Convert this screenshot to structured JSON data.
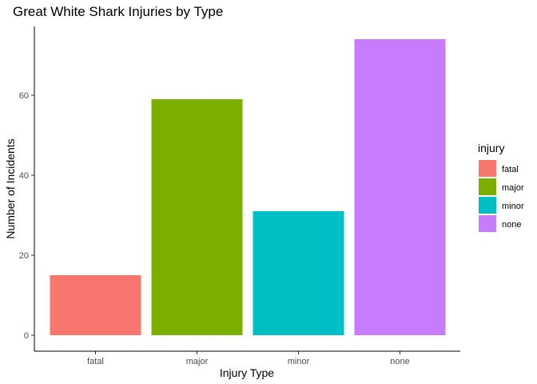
{
  "chart_data": {
    "type": "bar",
    "title": "Great White Shark Injuries by Type",
    "xlabel": "Injury Type",
    "ylabel": "Number of Incidents",
    "categories": [
      "fatal",
      "major",
      "minor",
      "none"
    ],
    "values": [
      15,
      59,
      31,
      74
    ],
    "ylim": [
      0,
      77.7
    ],
    "yticks": [
      0,
      20,
      40,
      60
    ],
    "grid": false,
    "legend": {
      "title": "injury",
      "position": "right",
      "entries": [
        "fatal",
        "major",
        "minor",
        "none"
      ]
    },
    "colors": [
      "#F8766D",
      "#7CAE00",
      "#00BFC4",
      "#C77CFF"
    ]
  }
}
